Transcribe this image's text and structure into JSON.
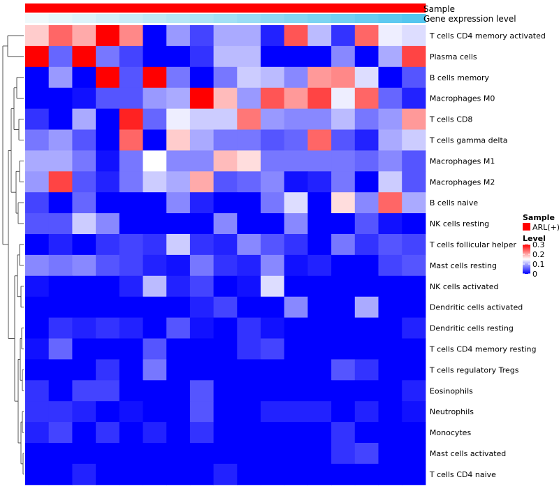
{
  "chart_data": {
    "type": "heatmap",
    "annotation_rows": [
      {
        "name": "Sample",
        "label": "Sample"
      },
      {
        "name": "Gene expression level",
        "label": "Gene expression level"
      }
    ],
    "sample_annotation": [
      "ARL(+)",
      "ARL(+)",
      "ARL(+)",
      "ARL(+)",
      "ARL(+)",
      "ARL(+)",
      "ARL(+)",
      "ARL(+)",
      "ARL(+)",
      "ARL(+)",
      "ARL(+)",
      "ARL(+)",
      "ARL(+)",
      "ARL(+)",
      "ARL(+)",
      "ARL(+)",
      "ARL(+)"
    ],
    "gene_expression_level": [
      0.0,
      0.06,
      0.12,
      0.18,
      0.24,
      0.3,
      0.36,
      0.42,
      0.48,
      0.54,
      0.6,
      0.66,
      0.72,
      0.78,
      0.84,
      0.9,
      0.96
    ],
    "rows": [
      "T cells CD4 memory activated",
      "Plasma cells",
      "B cells memory",
      "Macrophages M0",
      "T cells CD8",
      "T cells gamma delta",
      "Macrophages M1",
      "Macrophages M2",
      "B cells naive",
      "NK cells resting",
      "T cells follicular helper",
      "Mast cells resting",
      "NK cells activated",
      "Dendritic cells activated",
      "Dendritic cells resting",
      "T cells CD4 memory resting",
      "T cells regulatory  Tregs",
      "Eosinophils",
      "Neutrophils",
      "Monocytes",
      "Mast cells activated",
      "T cells CD4 naive"
    ],
    "values": [
      [
        0.18,
        0.24,
        0.2,
        0.3,
        0.22,
        0.0,
        0.09,
        0.04,
        0.1,
        0.1,
        0.02,
        0.25,
        0.11,
        0.03,
        0.24,
        0.14,
        0.13
      ],
      [
        0.3,
        0.06,
        0.3,
        0.07,
        0.04,
        0.0,
        0.0,
        0.03,
        0.11,
        0.11,
        0.0,
        0.0,
        0.0,
        0.08,
        0.0,
        0.1,
        0.26
      ],
      [
        0.0,
        0.09,
        0.0,
        0.3,
        0.05,
        0.3,
        0.07,
        0.0,
        0.07,
        0.12,
        0.11,
        0.08,
        0.21,
        0.22,
        0.13,
        0.0,
        0.05
      ],
      [
        0.0,
        0.0,
        0.01,
        0.05,
        0.05,
        0.09,
        0.1,
        0.3,
        0.19,
        0.09,
        0.25,
        0.21,
        0.26,
        0.14,
        0.24,
        0.06,
        0.02
      ],
      [
        0.03,
        0.0,
        0.1,
        0.0,
        0.28,
        0.06,
        0.14,
        0.12,
        0.12,
        0.23,
        0.09,
        0.08,
        0.08,
        0.11,
        0.07,
        0.09,
        0.21
      ],
      [
        0.07,
        0.09,
        0.05,
        0.0,
        0.24,
        0.0,
        0.18,
        0.1,
        0.07,
        0.07,
        0.05,
        0.06,
        0.24,
        0.05,
        0.02,
        0.1,
        0.12
      ],
      [
        0.1,
        0.1,
        0.07,
        0.01,
        0.07,
        0.15,
        0.08,
        0.08,
        0.19,
        0.17,
        0.07,
        0.07,
        0.07,
        0.07,
        0.06,
        0.08,
        0.05
      ],
      [
        0.09,
        0.26,
        0.05,
        0.02,
        0.07,
        0.12,
        0.1,
        0.2,
        0.05,
        0.06,
        0.08,
        0.01,
        0.02,
        0.07,
        0.0,
        0.12,
        0.05
      ],
      [
        0.04,
        0.0,
        0.06,
        0.0,
        0.0,
        0.0,
        0.08,
        0.02,
        0.0,
        0.0,
        0.07,
        0.13,
        0.0,
        0.17,
        0.08,
        0.24,
        0.1
      ],
      [
        0.05,
        0.05,
        0.12,
        0.08,
        0.0,
        0.0,
        0.0,
        0.0,
        0.08,
        0.0,
        0.0,
        0.08,
        0.0,
        0.0,
        0.05,
        0.01,
        0.0
      ],
      [
        0.0,
        0.02,
        0.0,
        0.03,
        0.04,
        0.03,
        0.12,
        0.03,
        0.02,
        0.08,
        0.05,
        0.03,
        0.0,
        0.07,
        0.03,
        0.05,
        0.04
      ],
      [
        0.08,
        0.07,
        0.08,
        0.05,
        0.04,
        0.02,
        0.01,
        0.07,
        0.03,
        0.02,
        0.08,
        0.01,
        0.02,
        0.0,
        0.0,
        0.04,
        0.05
      ],
      [
        0.01,
        0.0,
        0.0,
        0.0,
        0.02,
        0.11,
        0.02,
        0.04,
        0.0,
        0.01,
        0.13,
        0.0,
        0.0,
        0.0,
        0.0,
        0.0,
        0.0
      ],
      [
        0.0,
        0.0,
        0.0,
        0.0,
        0.0,
        0.0,
        0.0,
        0.02,
        0.04,
        0.0,
        0.0,
        0.08,
        0.0,
        0.0,
        0.1,
        0.0,
        0.0
      ],
      [
        0.0,
        0.03,
        0.02,
        0.03,
        0.02,
        0.0,
        0.05,
        0.01,
        0.0,
        0.03,
        0.01,
        0.0,
        0.0,
        0.0,
        0.0,
        0.0,
        0.02
      ],
      [
        0.01,
        0.06,
        0.0,
        0.0,
        0.0,
        0.05,
        0.0,
        0.0,
        0.0,
        0.03,
        0.04,
        0.0,
        0.0,
        0.0,
        0.0,
        0.0,
        0.0
      ],
      [
        0.0,
        0.0,
        0.0,
        0.03,
        0.0,
        0.07,
        0.0,
        0.0,
        0.0,
        0.0,
        0.0,
        0.0,
        0.0,
        0.05,
        0.03,
        0.0,
        0.0
      ],
      [
        0.03,
        0.0,
        0.04,
        0.04,
        0.0,
        0.0,
        0.0,
        0.05,
        0.0,
        0.0,
        0.0,
        0.0,
        0.0,
        0.0,
        0.0,
        0.0,
        0.02
      ],
      [
        0.03,
        0.03,
        0.02,
        0.0,
        0.01,
        0.0,
        0.0,
        0.05,
        0.0,
        0.0,
        0.02,
        0.02,
        0.02,
        0.0,
        0.02,
        0.0,
        0.01
      ],
      [
        0.02,
        0.04,
        0.0,
        0.03,
        0.0,
        0.02,
        0.0,
        0.03,
        0.0,
        0.0,
        0.0,
        0.0,
        0.0,
        0.03,
        0.0,
        0.0,
        0.0
      ],
      [
        0.0,
        0.0,
        0.0,
        0.0,
        0.0,
        0.0,
        0.0,
        0.0,
        0.0,
        0.0,
        0.0,
        0.0,
        0.0,
        0.03,
        0.04,
        0.0,
        0.0
      ],
      [
        0.0,
        0.0,
        0.02,
        0.0,
        0.0,
        0.0,
        0.0,
        0.0,
        0.02,
        0.0,
        0.0,
        0.0,
        0.0,
        0.0,
        0.0,
        0.0,
        0.0
      ]
    ],
    "color_scale": {
      "stops": [
        {
          "value": 0.0,
          "color": "#0000ff"
        },
        {
          "value": 0.15,
          "color": "#ffffff"
        },
        {
          "value": 0.3,
          "color": "#ff0000"
        }
      ]
    },
    "annotation_colors": {
      "sample": "#ff0000",
      "expression_low": "#f0f9fb",
      "expression_high": "#4ec4ef"
    },
    "legend": {
      "sample_title": "Sample",
      "sample_entry": "ARL(+)",
      "level_title": "Level",
      "level_ticks": [
        "0.3",
        "0.2",
        "0.1",
        "0"
      ],
      "level_tick_values": [
        0.3,
        0.2,
        0.1,
        0.0
      ],
      "position": "right"
    },
    "dendrogram": "row-clustering tree on left"
  }
}
